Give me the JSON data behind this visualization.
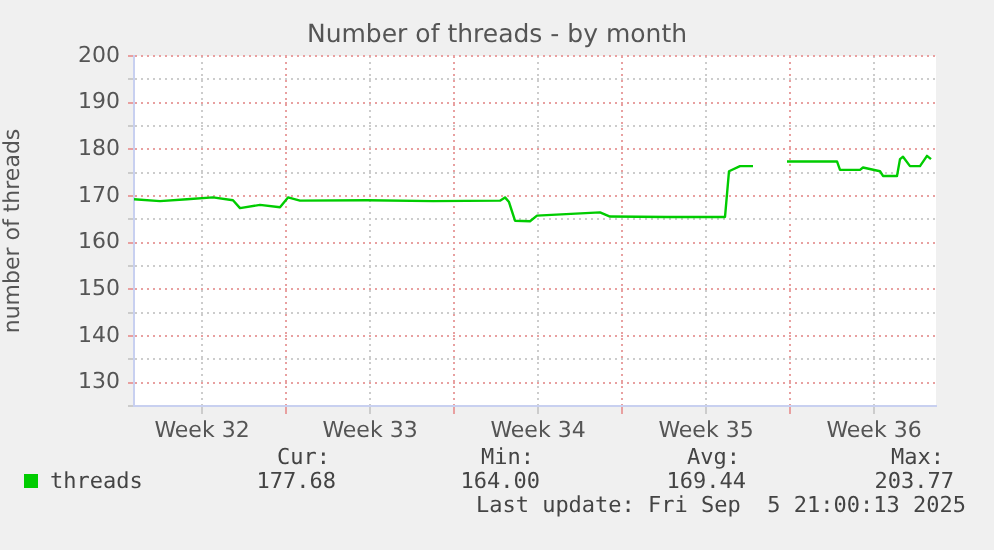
{
  "chart_data": {
    "type": "line",
    "title": "Number of threads - by month",
    "ylabel": "number of threads",
    "xlim": [
      "2025-08-04T16:00",
      "2025-09-07T02:00"
    ],
    "xticks": [
      {
        "value": "2025-08-07T12:00",
        "label": "Week 32"
      },
      {
        "value": "2025-08-11",
        "label": null
      },
      {
        "value": "2025-08-14T12:00",
        "label": "Week 33"
      },
      {
        "value": "2025-08-18",
        "label": null
      },
      {
        "value": "2025-08-21T12:00",
        "label": "Week 34"
      },
      {
        "value": "2025-08-25",
        "label": null
      },
      {
        "value": "2025-08-28T12:00",
        "label": "Week 35"
      },
      {
        "value": "2025-09-01",
        "label": null
      },
      {
        "value": "2025-09-04T12:00",
        "label": "Week 36"
      }
    ],
    "ylim": [
      125,
      200
    ],
    "yticks": [
      {
        "value": 125,
        "label": null
      },
      130,
      {
        "value": 135,
        "label": null
      },
      140,
      {
        "value": 145,
        "label": null
      },
      150,
      {
        "value": 155,
        "label": null
      },
      160,
      {
        "value": 165,
        "label": null
      },
      170,
      {
        "value": 175,
        "label": null
      },
      180,
      {
        "value": 185,
        "label": null
      },
      190,
      {
        "value": 195,
        "label": null
      },
      200
    ],
    "grid": true,
    "legend": "bottom left",
    "marker": "none",
    "line_style": "solid",
    "x": [
      "2025-08-04T16:00",
      "2025-08-05T18:00",
      "2025-08-06T21:00",
      "2025-08-07T23:00",
      "2025-08-08T19:00",
      "2025-08-09T02:00",
      "2025-08-09T22:00",
      "2025-08-10T18:00",
      "2025-08-11T02:00",
      "2025-08-11T14:00",
      "2025-08-14T09:00",
      "2025-08-17T03:00",
      "2025-08-19T22:00",
      "2025-08-20T03:00",
      "2025-08-20T07:00",
      "2025-08-20T13:00",
      "2025-08-21T04:00",
      "2025-08-21T11:00",
      "2025-08-24T02:00",
      "2025-08-24T12:00",
      "2025-08-26T21:00",
      "2025-08-29T07:00",
      "2025-08-29T11:00",
      "2025-08-29T22:00",
      "2025-08-30T11:00",
      "2025-08-31T00:00",
      "2025-08-31T21:00",
      "2025-09-02T23:00",
      "2025-09-03T02:00",
      "2025-09-03T22:00",
      "2025-09-04T01:00",
      "2025-09-04T18:00",
      "2025-09-04T21:00",
      "2025-09-05T11:00",
      "2025-09-05T14:00",
      "2025-09-05T17:00",
      "2025-09-06T00:00",
      "2025-09-06T10:00",
      "2025-09-06T17:00",
      "2025-09-06T21:00"
    ],
    "series": [
      {
        "name": "threads",
        "color": "#00cc00",
        "values": [
          169.3,
          168.9,
          169.3,
          169.7,
          169.1,
          167.4,
          168.1,
          167.6,
          169.7,
          169.0,
          169.1,
          168.9,
          169.0,
          169.7,
          168.7,
          164.7,
          164.6,
          165.8,
          166.5,
          165.6,
          165.5,
          165.5,
          175.3,
          176.4,
          176.4,
          null,
          177.4,
          177.4,
          175.6,
          175.6,
          176.1,
          175.3,
          174.3,
          174.3,
          177.9,
          178.4,
          176.4,
          176.4,
          178.6,
          177.9
        ]
      }
    ],
    "annotations": [
      "Cur:",
      "Min:",
      "Avg:",
      "Max:",
      "177.68",
      "164.00",
      "169.44",
      "203.77",
      "Last update: Fri Sep  5 21:00:13 2025"
    ]
  }
}
